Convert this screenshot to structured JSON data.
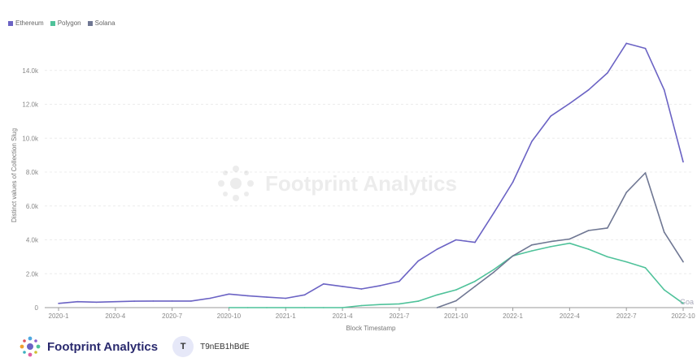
{
  "legend": [
    {
      "name": "Ethereum",
      "color": "#6b63c4"
    },
    {
      "name": "Polygon",
      "color": "#4fc29a"
    },
    {
      "name": "Solana",
      "color": "#6f7793"
    }
  ],
  "watermark": {
    "text": "Footprint Analytics",
    "icon": "footprint-logo-icon"
  },
  "footer": {
    "brand": "Footprint Analytics",
    "avatar_letter": "T",
    "username": "T9nEB1hBdE",
    "icon": "footprint-logo-icon"
  },
  "overflow_label": "Goa",
  "chart_data": {
    "type": "line",
    "xlabel": "Block Timestamp",
    "ylabel": "Distinct values of Collection Slug",
    "x_ticks": [
      "2020-1",
      "2020-4",
      "2020-7",
      "2020-10",
      "2021-1",
      "2021-4",
      "2021-7",
      "2021-10",
      "2022-1",
      "2022-4",
      "2022-7",
      "2022-10"
    ],
    "y_ticks": [
      "0",
      "2.0k",
      "4.0k",
      "6.0k",
      "8.0k",
      "10.0k",
      "12.0k",
      "14.0k"
    ],
    "ylim": [
      0,
      16000
    ],
    "grid": true,
    "legend_position": "top-left",
    "series": [
      {
        "name": "Ethereum",
        "color": "#6b63c4",
        "x": [
          "2020-1",
          "2020-2",
          "2020-3",
          "2020-4",
          "2020-5",
          "2020-6",
          "2020-7",
          "2020-8",
          "2020-9",
          "2020-10",
          "2020-11",
          "2020-12",
          "2021-1",
          "2021-2",
          "2021-3",
          "2021-4",
          "2021-5",
          "2021-6",
          "2021-7",
          "2021-8",
          "2021-9",
          "2021-10",
          "2021-11",
          "2021-12",
          "2022-1",
          "2022-2",
          "2022-3",
          "2022-4",
          "2022-5",
          "2022-6",
          "2022-7",
          "2022-8",
          "2022-9",
          "2022-10"
        ],
        "values": [
          250,
          350,
          320,
          350,
          380,
          390,
          390,
          390,
          550,
          800,
          700,
          620,
          550,
          750,
          1400,
          1250,
          1100,
          1300,
          1550,
          2750,
          3450,
          4000,
          3850,
          5600,
          7400,
          9800,
          11300,
          12050,
          12850,
          13850,
          15600,
          15300,
          12850,
          8600
        ]
      },
      {
        "name": "Polygon",
        "color": "#4fc29a",
        "x": [
          "2020-10",
          "2020-11",
          "2020-12",
          "2021-1",
          "2021-2",
          "2021-3",
          "2021-4",
          "2021-5",
          "2021-6",
          "2021-7",
          "2021-8",
          "2021-9",
          "2021-10",
          "2021-11",
          "2021-12",
          "2022-1",
          "2022-2",
          "2022-3",
          "2022-4",
          "2022-5",
          "2022-6",
          "2022-7",
          "2022-8",
          "2022-9",
          "2022-10"
        ],
        "values": [
          0,
          0,
          0,
          0,
          0,
          0,
          0,
          120,
          180,
          220,
          380,
          750,
          1050,
          1550,
          2250,
          3050,
          3350,
          3600,
          3800,
          3450,
          3000,
          2700,
          2350,
          1050,
          250
        ]
      },
      {
        "name": "Solana",
        "color": "#6f7793",
        "x": [
          "2021-9",
          "2021-10",
          "2021-11",
          "2021-12",
          "2022-1",
          "2022-2",
          "2022-3",
          "2022-4",
          "2022-5",
          "2022-6",
          "2022-7",
          "2022-8",
          "2022-9",
          "2022-10"
        ],
        "values": [
          0,
          400,
          1250,
          2100,
          3050,
          3700,
          3900,
          4050,
          4550,
          4700,
          6800,
          7950,
          4450,
          2700
        ]
      }
    ]
  }
}
